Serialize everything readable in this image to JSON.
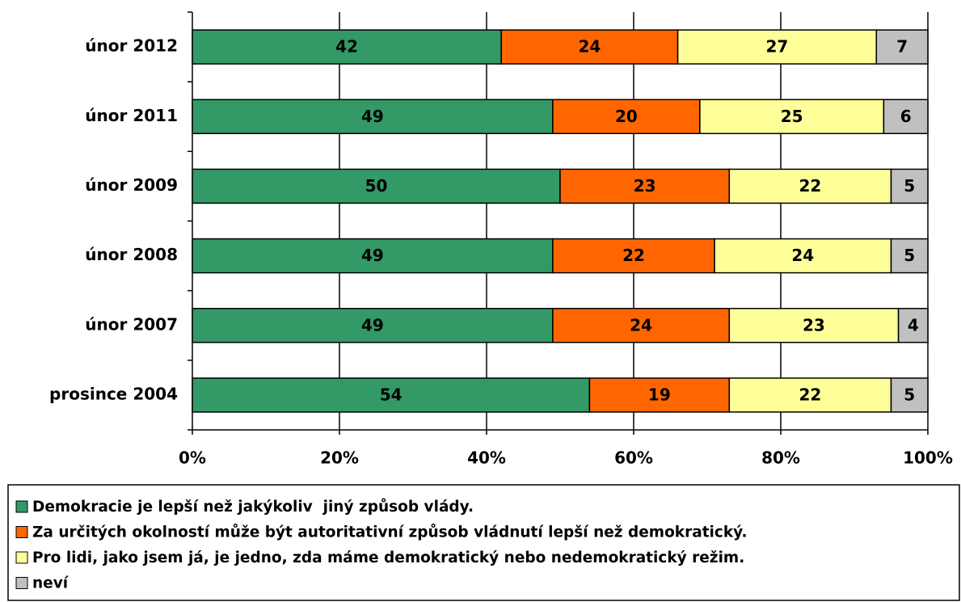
{
  "chart_data": {
    "type": "stacked-barh",
    "categories": [
      "únor 2012",
      "únor 2011",
      "únor 2009",
      "únor 2008",
      "únor 2007",
      "prosince 2004"
    ],
    "series": [
      {
        "name": "Demokracie je lepší než jakýkoliv  jiný způsob vlády.",
        "color": "#339966",
        "values": [
          42,
          49,
          50,
          49,
          49,
          54
        ]
      },
      {
        "name": "Za určitých okolností může být autoritativní způsob vládnutí lepší než demokratický.",
        "color": "#ff6600",
        "values": [
          24,
          20,
          23,
          22,
          24,
          19
        ]
      },
      {
        "name": "Pro lidi, jako jsem já, je jedno, zda máme demokratický nebo nedemokratický režim.",
        "color": "#ffff99",
        "values": [
          27,
          25,
          22,
          24,
          23,
          22
        ]
      },
      {
        "name": "neví",
        "color": "#c0c0c0",
        "values": [
          7,
          6,
          5,
          5,
          4,
          5
        ]
      }
    ],
    "xlim": [
      0,
      100
    ],
    "xticks": [
      {
        "value": 0,
        "label": "0%"
      },
      {
        "value": 20,
        "label": "20%"
      },
      {
        "value": 40,
        "label": "40%"
      },
      {
        "value": 60,
        "label": "60%"
      },
      {
        "value": 80,
        "label": "80%"
      },
      {
        "value": 100,
        "label": "100%"
      }
    ],
    "grid": true,
    "legend": "bottom"
  }
}
